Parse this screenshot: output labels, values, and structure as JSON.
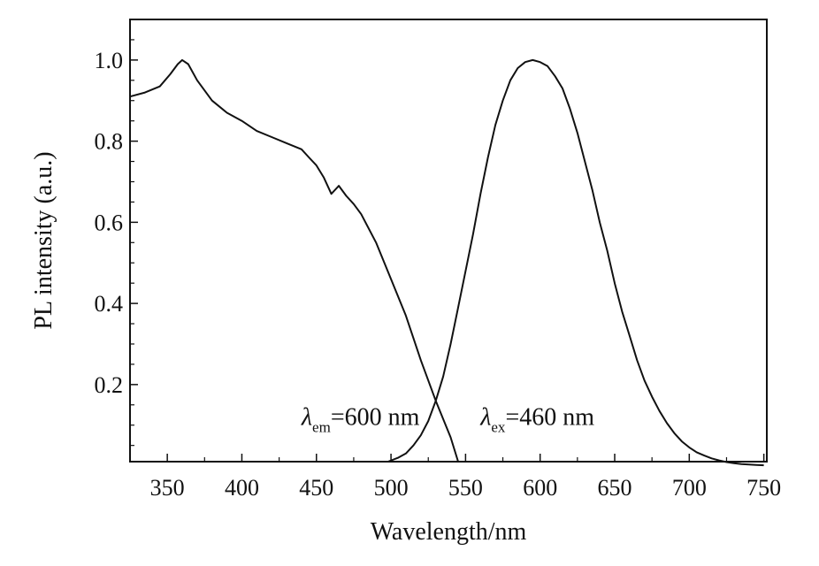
{
  "chart_data": {
    "type": "line",
    "xlabel": "Wavelength/nm",
    "ylabel": "PL intensity (a.u.)",
    "xlim": [
      325,
      752
    ],
    "ylim": [
      0.01,
      1.1
    ],
    "x_ticks": [
      350,
      400,
      450,
      500,
      550,
      600,
      650,
      700,
      750
    ],
    "y_ticks": [
      0.2,
      0.4,
      0.6,
      0.8,
      1.0
    ],
    "x_tick_labels": [
      "350",
      "400",
      "450",
      "500",
      "550",
      "600",
      "650",
      "700",
      "750"
    ],
    "y_tick_labels": [
      "0.2",
      "0.4",
      "0.6",
      "0.8",
      "1.0"
    ],
    "grid": false,
    "series": [
      {
        "x": [
          325,
          335,
          345,
          352,
          357,
          360,
          364,
          370,
          380,
          390,
          400,
          410,
          420,
          430,
          440,
          445,
          450,
          455,
          460,
          465,
          470,
          475,
          480,
          490,
          500,
          510,
          520,
          530,
          540,
          545
        ],
        "y": [
          0.91,
          0.92,
          0.935,
          0.965,
          0.99,
          1.0,
          0.99,
          0.95,
          0.9,
          0.87,
          0.85,
          0.825,
          0.81,
          0.795,
          0.78,
          0.76,
          0.74,
          0.71,
          0.67,
          0.69,
          0.665,
          0.645,
          0.62,
          0.55,
          0.46,
          0.37,
          0.26,
          0.16,
          0.07,
          0.01
        ]
      },
      {
        "x": [
          498,
          505,
          510,
          515,
          520,
          525,
          530,
          535,
          540,
          545,
          550,
          555,
          560,
          565,
          570,
          575,
          580,
          585,
          590,
          595,
          600,
          605,
          610,
          615,
          620,
          625,
          630,
          635,
          640,
          645,
          650,
          655,
          660,
          665,
          670,
          675,
          680,
          685,
          690,
          695,
          700,
          705,
          710,
          715,
          720,
          725,
          730,
          735,
          740,
          745,
          750
        ],
        "y": [
          0.01,
          0.02,
          0.03,
          0.05,
          0.075,
          0.11,
          0.16,
          0.22,
          0.3,
          0.39,
          0.48,
          0.57,
          0.67,
          0.76,
          0.84,
          0.9,
          0.95,
          0.98,
          0.995,
          1.0,
          0.995,
          0.985,
          0.96,
          0.93,
          0.88,
          0.82,
          0.75,
          0.68,
          0.6,
          0.53,
          0.45,
          0.38,
          0.32,
          0.26,
          0.21,
          0.17,
          0.135,
          0.105,
          0.08,
          0.06,
          0.045,
          0.033,
          0.025,
          0.018,
          0.013,
          0.009,
          0.006,
          0.004,
          0.003,
          0.002,
          0.001
        ]
      }
    ],
    "annotations": [
      {
        "symbol": "λ",
        "sub": "em",
        "text": "=600 nm",
        "x": 440,
        "y": 0.1
      },
      {
        "symbol": "λ",
        "sub": "ex",
        "text": "=460 nm",
        "x": 560,
        "y": 0.1
      }
    ]
  }
}
